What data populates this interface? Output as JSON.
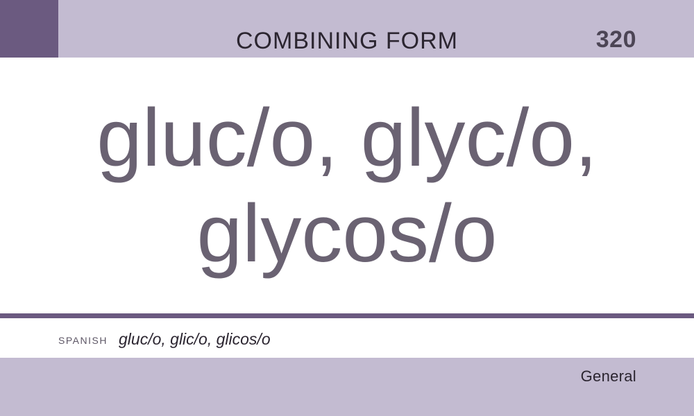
{
  "header": {
    "category": "COMBINING FORM",
    "number": "320"
  },
  "term": {
    "line1": "gluc/o, glyc/o,",
    "line2": "glycos/o"
  },
  "translation": {
    "language": "SPANISH",
    "text": "gluc/o, glic/o, glicos/o"
  },
  "footer": {
    "section": "General"
  },
  "colors": {
    "band": "#c3bbd1",
    "accent": "#6b5a80",
    "term_text": "#6a6272"
  }
}
